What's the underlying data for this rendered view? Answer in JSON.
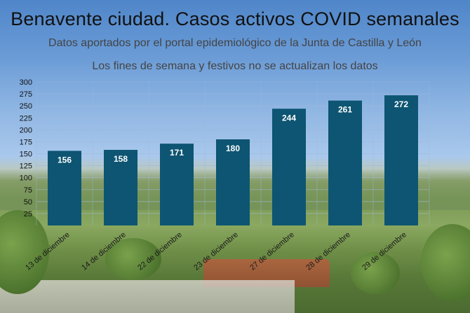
{
  "title": "Benavente ciudad. Casos activos COVID semanales",
  "subtitle_1": "Datos aportados por el portal epidemiológico de la Junta de Castilla  y León",
  "subtitle_2": "Los fines de semana y festivos no se actualizan los datos",
  "colors": {
    "bar": "#0d5572",
    "bar_label": "#ffffff",
    "grid": "#9fb9d6"
  },
  "chart_data": {
    "type": "bar",
    "categories": [
      "13 de diciembre",
      "14 de diciembre",
      "22 de diciembre",
      "23 de diciembre",
      "27 de diciembre",
      "28 de diciembre",
      "29 de diciembre"
    ],
    "values": [
      156,
      158,
      171,
      180,
      244,
      261,
      272
    ],
    "ylim": [
      0,
      300
    ],
    "yticks": [
      25,
      50,
      75,
      100,
      125,
      150,
      175,
      200,
      225,
      250,
      275,
      300
    ],
    "grid": true,
    "data_labels": true
  }
}
